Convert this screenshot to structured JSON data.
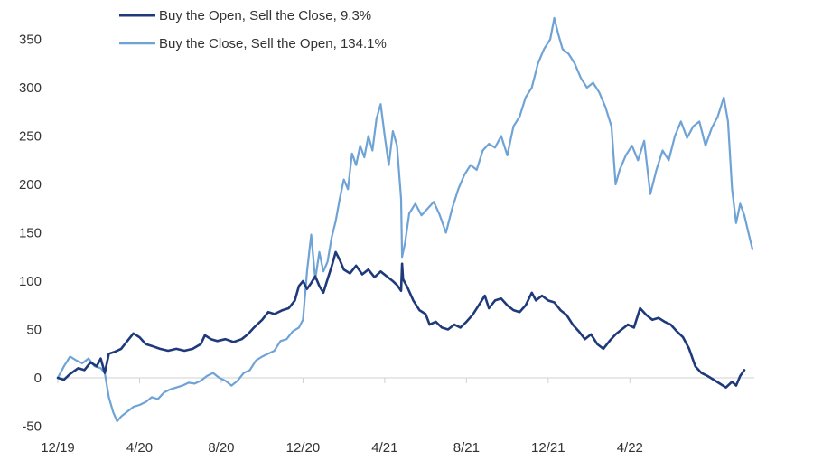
{
  "chart_data": {
    "type": "line",
    "title": "",
    "xlabel": "",
    "ylabel": "",
    "ylim": [
      -50,
      375
    ],
    "y_ticks": [
      -50,
      0,
      50,
      100,
      150,
      200,
      250,
      300,
      350
    ],
    "x_ticks": [
      "12/19",
      "4/20",
      "8/20",
      "12/20",
      "4/21",
      "8/21",
      "12/21",
      "4/22"
    ],
    "grid": false,
    "legend_position": "top-left",
    "series": [
      {
        "name": "Buy the Open, Sell the Close, 9.3%",
        "color": "#1f3a7a",
        "points": [
          [
            0,
            0
          ],
          [
            0.3,
            -2
          ],
          [
            0.6,
            4
          ],
          [
            1,
            10
          ],
          [
            1.3,
            8
          ],
          [
            1.6,
            16
          ],
          [
            1.9,
            12
          ],
          [
            2.1,
            20
          ],
          [
            2.3,
            5
          ],
          [
            2.5,
            25
          ],
          [
            2.8,
            27
          ],
          [
            3.1,
            30
          ],
          [
            3.4,
            38
          ],
          [
            3.7,
            46
          ],
          [
            4,
            42
          ],
          [
            4.3,
            35
          ],
          [
            4.6,
            33
          ],
          [
            5,
            30
          ],
          [
            5.4,
            28
          ],
          [
            5.8,
            30
          ],
          [
            6.2,
            28
          ],
          [
            6.6,
            30
          ],
          [
            7,
            35
          ],
          [
            7.2,
            44
          ],
          [
            7.5,
            40
          ],
          [
            7.8,
            38
          ],
          [
            8.2,
            40
          ],
          [
            8.6,
            37
          ],
          [
            9,
            40
          ],
          [
            9.3,
            45
          ],
          [
            9.6,
            52
          ],
          [
            10,
            60
          ],
          [
            10.3,
            68
          ],
          [
            10.6,
            66
          ],
          [
            11,
            70
          ],
          [
            11.3,
            72
          ],
          [
            11.6,
            80
          ],
          [
            11.8,
            95
          ],
          [
            12,
            100
          ],
          [
            12.2,
            92
          ],
          [
            12.4,
            98
          ],
          [
            12.6,
            105
          ],
          [
            12.8,
            95
          ],
          [
            13,
            88
          ],
          [
            13.2,
            102
          ],
          [
            13.4,
            115
          ],
          [
            13.6,
            130
          ],
          [
            13.8,
            122
          ],
          [
            14,
            112
          ],
          [
            14.3,
            108
          ],
          [
            14.6,
            116
          ],
          [
            14.9,
            107
          ],
          [
            15.2,
            112
          ],
          [
            15.5,
            104
          ],
          [
            15.8,
            110
          ],
          [
            16.1,
            105
          ],
          [
            16.4,
            100
          ],
          [
            16.6,
            96
          ],
          [
            16.8,
            90
          ],
          [
            16.85,
            118
          ],
          [
            16.9,
            102
          ],
          [
            17.1,
            94
          ],
          [
            17.4,
            80
          ],
          [
            17.7,
            70
          ],
          [
            18,
            66
          ],
          [
            18.2,
            55
          ],
          [
            18.5,
            58
          ],
          [
            18.8,
            52
          ],
          [
            19.1,
            50
          ],
          [
            19.4,
            55
          ],
          [
            19.7,
            52
          ],
          [
            20,
            58
          ],
          [
            20.3,
            65
          ],
          [
            20.6,
            75
          ],
          [
            20.9,
            85
          ],
          [
            21.1,
            72
          ],
          [
            21.4,
            80
          ],
          [
            21.7,
            82
          ],
          [
            22,
            75
          ],
          [
            22.3,
            70
          ],
          [
            22.6,
            68
          ],
          [
            22.9,
            75
          ],
          [
            23.2,
            88
          ],
          [
            23.4,
            80
          ],
          [
            23.7,
            85
          ],
          [
            24,
            80
          ],
          [
            24.3,
            78
          ],
          [
            24.6,
            70
          ],
          [
            24.9,
            65
          ],
          [
            25.2,
            55
          ],
          [
            25.5,
            48
          ],
          [
            25.8,
            40
          ],
          [
            26.1,
            45
          ],
          [
            26.4,
            35
          ],
          [
            26.7,
            30
          ],
          [
            27,
            38
          ],
          [
            27.3,
            45
          ],
          [
            27.6,
            50
          ],
          [
            27.9,
            55
          ],
          [
            28.2,
            52
          ],
          [
            28.5,
            72
          ],
          [
            28.8,
            65
          ],
          [
            29.1,
            60
          ],
          [
            29.4,
            62
          ],
          [
            29.7,
            58
          ],
          [
            30,
            55
          ],
          [
            30.3,
            48
          ],
          [
            30.6,
            42
          ],
          [
            30.9,
            30
          ],
          [
            31.2,
            12
          ],
          [
            31.5,
            5
          ],
          [
            31.8,
            2
          ],
          [
            32.1,
            -2
          ],
          [
            32.4,
            -6
          ],
          [
            32.7,
            -10
          ],
          [
            33,
            -4
          ],
          [
            33.2,
            -8
          ],
          [
            33.4,
            2
          ],
          [
            33.6,
            8
          ]
        ]
      },
      {
        "name": "Buy the Close, Sell the Open, 134.1%",
        "color": "#6fa3d6",
        "points": [
          [
            0,
            0
          ],
          [
            0.3,
            12
          ],
          [
            0.6,
            22
          ],
          [
            0.9,
            18
          ],
          [
            1.2,
            15
          ],
          [
            1.5,
            20
          ],
          [
            1.8,
            12
          ],
          [
            2.1,
            10
          ],
          [
            2.3,
            5
          ],
          [
            2.5,
            -20
          ],
          [
            2.7,
            -35
          ],
          [
            2.9,
            -45
          ],
          [
            3.1,
            -40
          ],
          [
            3.4,
            -35
          ],
          [
            3.7,
            -30
          ],
          [
            4,
            -28
          ],
          [
            4.3,
            -25
          ],
          [
            4.6,
            -20
          ],
          [
            4.9,
            -22
          ],
          [
            5.2,
            -15
          ],
          [
            5.5,
            -12
          ],
          [
            5.8,
            -10
          ],
          [
            6.1,
            -8
          ],
          [
            6.4,
            -5
          ],
          [
            6.7,
            -6
          ],
          [
            7,
            -3
          ],
          [
            7.3,
            2
          ],
          [
            7.6,
            5
          ],
          [
            7.9,
            0
          ],
          [
            8.2,
            -3
          ],
          [
            8.5,
            -8
          ],
          [
            8.8,
            -3
          ],
          [
            9.1,
            5
          ],
          [
            9.4,
            8
          ],
          [
            9.7,
            18
          ],
          [
            10,
            22
          ],
          [
            10.3,
            25
          ],
          [
            10.6,
            28
          ],
          [
            10.9,
            38
          ],
          [
            11.2,
            40
          ],
          [
            11.5,
            48
          ],
          [
            11.8,
            52
          ],
          [
            12,
            60
          ],
          [
            12.2,
            110
          ],
          [
            12.4,
            148
          ],
          [
            12.6,
            102
          ],
          [
            12.8,
            130
          ],
          [
            13,
            110
          ],
          [
            13.2,
            120
          ],
          [
            13.4,
            145
          ],
          [
            13.6,
            162
          ],
          [
            13.8,
            185
          ],
          [
            14,
            205
          ],
          [
            14.2,
            195
          ],
          [
            14.4,
            232
          ],
          [
            14.6,
            220
          ],
          [
            14.8,
            240
          ],
          [
            15,
            228
          ],
          [
            15.2,
            250
          ],
          [
            15.4,
            235
          ],
          [
            15.6,
            268
          ],
          [
            15.8,
            283
          ],
          [
            16,
            250
          ],
          [
            16.2,
            220
          ],
          [
            16.4,
            255
          ],
          [
            16.6,
            240
          ],
          [
            16.8,
            185
          ],
          [
            16.85,
            125
          ],
          [
            17,
            140
          ],
          [
            17.2,
            170
          ],
          [
            17.5,
            180
          ],
          [
            17.8,
            168
          ],
          [
            18.1,
            175
          ],
          [
            18.4,
            182
          ],
          [
            18.7,
            168
          ],
          [
            19,
            150
          ],
          [
            19.3,
            175
          ],
          [
            19.6,
            195
          ],
          [
            19.9,
            210
          ],
          [
            20.2,
            220
          ],
          [
            20.5,
            215
          ],
          [
            20.8,
            235
          ],
          [
            21.1,
            242
          ],
          [
            21.4,
            238
          ],
          [
            21.7,
            250
          ],
          [
            22,
            230
          ],
          [
            22.3,
            260
          ],
          [
            22.6,
            270
          ],
          [
            22.9,
            290
          ],
          [
            23.2,
            300
          ],
          [
            23.5,
            325
          ],
          [
            23.8,
            340
          ],
          [
            24.1,
            350
          ],
          [
            24.3,
            372
          ],
          [
            24.5,
            355
          ],
          [
            24.7,
            340
          ],
          [
            25,
            335
          ],
          [
            25.3,
            325
          ],
          [
            25.6,
            310
          ],
          [
            25.9,
            300
          ],
          [
            26.2,
            305
          ],
          [
            26.5,
            295
          ],
          [
            26.8,
            280
          ],
          [
            27.1,
            260
          ],
          [
            27.3,
            200
          ],
          [
            27.5,
            215
          ],
          [
            27.8,
            230
          ],
          [
            28.1,
            240
          ],
          [
            28.4,
            225
          ],
          [
            28.7,
            245
          ],
          [
            29,
            190
          ],
          [
            29.3,
            215
          ],
          [
            29.6,
            235
          ],
          [
            29.9,
            225
          ],
          [
            30.2,
            250
          ],
          [
            30.5,
            265
          ],
          [
            30.8,
            248
          ],
          [
            31.1,
            260
          ],
          [
            31.4,
            265
          ],
          [
            31.7,
            240
          ],
          [
            32,
            258
          ],
          [
            32.3,
            270
          ],
          [
            32.6,
            290
          ],
          [
            32.8,
            265
          ],
          [
            33,
            195
          ],
          [
            33.2,
            160
          ],
          [
            33.4,
            180
          ],
          [
            33.6,
            168
          ],
          [
            33.8,
            150
          ],
          [
            34,
            133
          ]
        ]
      }
    ]
  }
}
